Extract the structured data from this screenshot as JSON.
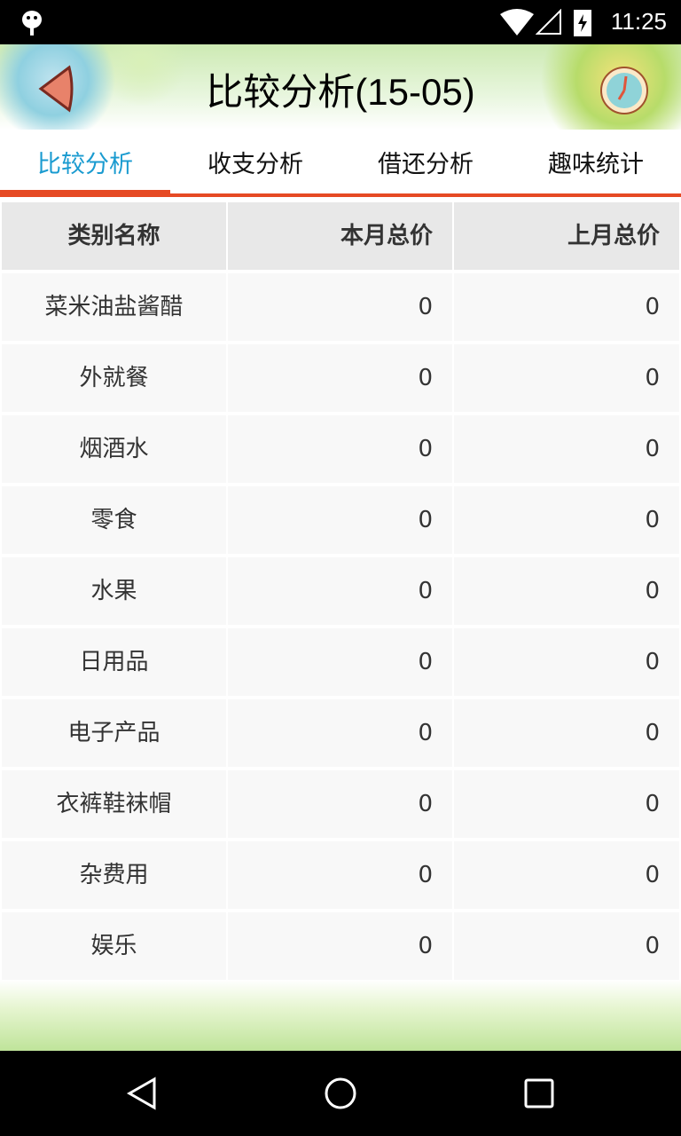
{
  "status_bar": {
    "time": "11:25"
  },
  "header": {
    "title": "比较分析(15-05)"
  },
  "tabs": [
    {
      "label": "比较分析",
      "active": true
    },
    {
      "label": "收支分析"
    },
    {
      "label": "借还分析"
    },
    {
      "label": "趣味统计"
    }
  ],
  "table": {
    "headers": [
      "类别名称",
      "本月总价",
      "上月总价"
    ],
    "rows": [
      [
        "菜米油盐酱醋",
        "0",
        "0"
      ],
      [
        "外就餐",
        "0",
        "0"
      ],
      [
        "烟酒水",
        "0",
        "0"
      ],
      [
        "零食",
        "0",
        "0"
      ],
      [
        "水果",
        "0",
        "0"
      ],
      [
        "日用品",
        "0",
        "0"
      ],
      [
        "电子产品",
        "0",
        "0"
      ],
      [
        "衣裤鞋袜帽",
        "0",
        "0"
      ],
      [
        "杂费用",
        "0",
        "0"
      ],
      [
        "娱乐",
        "0",
        "0"
      ]
    ]
  },
  "colors": {
    "accent": "#e64a24",
    "active_tab": "#1a9bd0"
  }
}
